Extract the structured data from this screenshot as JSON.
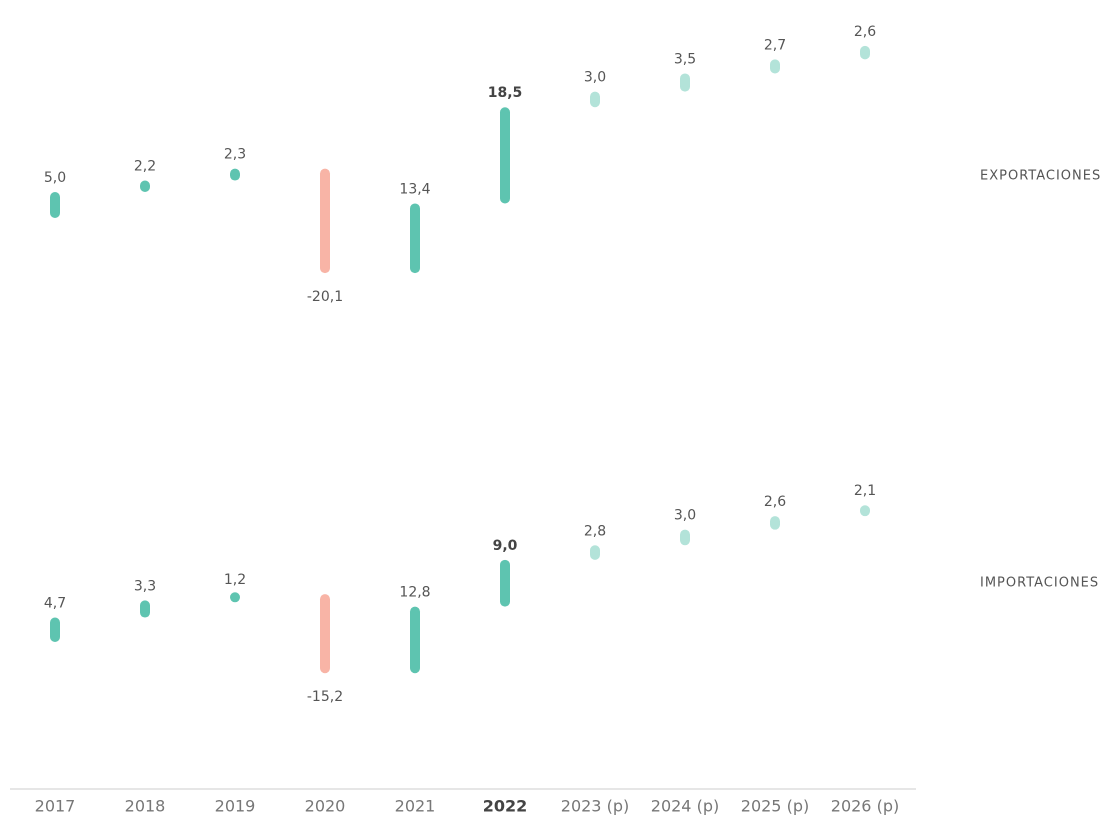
{
  "chart_data": {
    "type": "waterfall",
    "categories": [
      "2017",
      "2018",
      "2019",
      "2020",
      "2021",
      "2022",
      "2023 (p)",
      "2024 (p)",
      "2025 (p)",
      "2026 (p)"
    ],
    "highlight": "2022",
    "projected_from": "2023 (p)",
    "colors": {
      "positive": "#5ec4b0",
      "negative": "#f8b4a6",
      "projected": "#b3e3d9"
    },
    "series": [
      {
        "name": "EXPORTACIONES",
        "values": [
          5.0,
          2.2,
          2.3,
          -20.1,
          13.4,
          18.5,
          3.0,
          3.5,
          2.7,
          2.6
        ],
        "value_labels": [
          "5,0",
          "2,2",
          "2,3",
          "-20,1",
          "13,4",
          "18,5",
          "3,0",
          "3,5",
          "2,7",
          "2,6"
        ]
      },
      {
        "name": "IMPORTACIONES",
        "values": [
          4.7,
          3.3,
          1.2,
          -15.2,
          12.8,
          9.0,
          2.8,
          3.0,
          2.6,
          2.1
        ],
        "value_labels": [
          "4,7",
          "3,3",
          "1,2",
          "-15,2",
          "12,8",
          "9,0",
          "2,8",
          "3,0",
          "2,6",
          "2,1"
        ]
      }
    ]
  }
}
